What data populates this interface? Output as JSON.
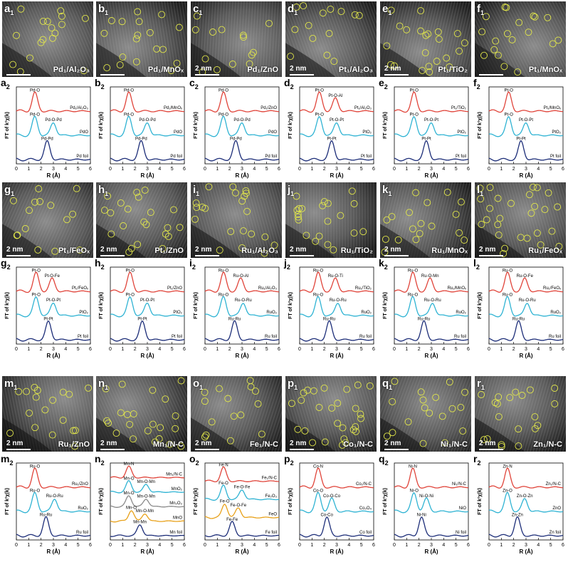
{
  "colors": {
    "red": "#e0443a",
    "cyan": "#2fb3d3",
    "navy": "#1c2d78",
    "orange": "#e8a11a",
    "gray": "#8a8a8a",
    "circle": "#e3e84a"
  },
  "image_panels": [
    {
      "label": "a",
      "sub": "1",
      "caption": "Pd₁/Al₂O₃",
      "scale": ""
    },
    {
      "label": "b",
      "sub": "1",
      "caption": "Pd₁/MnOₓ",
      "scale": ""
    },
    {
      "label": "c",
      "sub": "1",
      "caption": "Pd₁/ZnO",
      "scale": "2 nm"
    },
    {
      "label": "d",
      "sub": "1",
      "caption": "Pt₁/Al₂O₃",
      "scale": "2 nm"
    },
    {
      "label": "e",
      "sub": "1",
      "caption": "Pt₁/TiO₂",
      "scale": "2 nm"
    },
    {
      "label": "f",
      "sub": "1",
      "caption": "Pt₁/MnOₓ",
      "scale": ""
    },
    {
      "label": "g",
      "sub": "1",
      "caption": "Pt₁/FeOₓ",
      "scale": "2 nm"
    },
    {
      "label": "h",
      "sub": "1",
      "caption": "Pt₁/ZnO",
      "scale": "2 nm"
    },
    {
      "label": "i",
      "sub": "1",
      "caption": "Ru₁/Al₂O₃",
      "scale": "2 nm"
    },
    {
      "label": "j",
      "sub": "1",
      "caption": "Ru₁/TiO₂",
      "scale": "2 nm"
    },
    {
      "label": "k",
      "sub": "1",
      "caption": "Ru₁/MnOₓ",
      "scale": "2 nm"
    },
    {
      "label": "l",
      "sub": "1",
      "caption": "Ru₁/FeOₓ",
      "scale": "2 nm"
    },
    {
      "label": "m",
      "sub": "1",
      "caption": "Ru₁/ZnO",
      "scale": "2 nm"
    },
    {
      "label": "n",
      "sub": "1",
      "caption": "Mn₁/N-C",
      "scale": "2 nm"
    },
    {
      "label": "o",
      "sub": "1",
      "caption": "Fe₁/N-C",
      "scale": "2 nm"
    },
    {
      "label": "p",
      "sub": "1",
      "caption": "Co₁/N-C",
      "scale": "2 nm"
    },
    {
      "label": "q",
      "sub": "1",
      "caption": "Ni₁/N-C",
      "scale": "2 nm"
    },
    {
      "label": "r",
      "sub": "1",
      "caption": "Zn₁/N-C",
      "scale": "2 nm"
    }
  ],
  "axes": {
    "xlabel": "R (Å)",
    "ylabel": "FT of k²χ(k)",
    "xticks": [
      "0",
      "1",
      "2",
      "3",
      "4",
      "5",
      "6"
    ]
  },
  "spectra_panels": [
    {
      "label": "a",
      "sub": "2",
      "curves": [
        {
          "color": "red",
          "name": "Pd₁/Al₂O₃",
          "peaks": [
            [
              "Pd-O",
              1.5
            ]
          ]
        },
        {
          "color": "cyan",
          "name": "PdO",
          "peaks": [
            [
              "Pd-O",
              1.5
            ],
            [
              "Pd-O-Pd",
              3.0
            ]
          ]
        },
        {
          "color": "navy",
          "name": "Pd foil",
          "peaks": [
            [
              "Pd-Pd",
              2.5
            ]
          ]
        }
      ]
    },
    {
      "label": "b",
      "sub": "2",
      "curves": [
        {
          "color": "red",
          "name": "Pd₁/MnOₓ",
          "peaks": [
            [
              "Pd-O",
              1.5
            ]
          ]
        },
        {
          "color": "cyan",
          "name": "PdO",
          "peaks": [
            [
              "Pd-O",
              1.5
            ],
            [
              "Pd-O-Pd",
              3.0
            ]
          ]
        },
        {
          "color": "navy",
          "name": "Pd foil",
          "peaks": [
            [
              "Pd-Pd",
              2.5
            ]
          ]
        }
      ]
    },
    {
      "label": "c",
      "sub": "2",
      "curves": [
        {
          "color": "red",
          "name": "Pd₁/ZnO",
          "peaks": [
            [
              "Pd-O",
              1.5
            ]
          ]
        },
        {
          "color": "cyan",
          "name": "PdO",
          "peaks": [
            [
              "Pd-O",
              1.5
            ],
            [
              "Pd-O-Pd",
              3.0
            ]
          ]
        },
        {
          "color": "navy",
          "name": "Pd foil",
          "peaks": [
            [
              "Pd-Pd",
              2.5
            ]
          ]
        }
      ]
    },
    {
      "label": "d",
      "sub": "2",
      "curves": [
        {
          "color": "red",
          "name": "Pt₁/Al₂O₃",
          "peaks": [
            [
              "Pt-O",
              1.6
            ],
            [
              "Pt-O-Al",
              2.9
            ]
          ]
        },
        {
          "color": "cyan",
          "name": "PtO₂",
          "peaks": [
            [
              "Pt-O",
              1.6
            ],
            [
              "Pt-O-Pt",
              3.0
            ]
          ]
        },
        {
          "color": "navy",
          "name": "Pt foil",
          "peaks": [
            [
              "Pt-Pt",
              2.6
            ]
          ]
        }
      ]
    },
    {
      "label": "e",
      "sub": "2",
      "curves": [
        {
          "color": "red",
          "name": "Pt₁/TiO₂",
          "peaks": [
            [
              "Pt-O",
              1.6
            ]
          ]
        },
        {
          "color": "cyan",
          "name": "PtO₂",
          "peaks": [
            [
              "Pt-O",
              1.6
            ],
            [
              "Pt-O-Pt",
              3.0
            ]
          ]
        },
        {
          "color": "navy",
          "name": "Pt foil",
          "peaks": [
            [
              "Pt-Pt",
              2.6
            ]
          ]
        }
      ]
    },
    {
      "label": "f",
      "sub": "2",
      "curves": [
        {
          "color": "red",
          "name": "Pt₁/MnOₓ",
          "peaks": [
            [
              "Pt-O",
              1.6
            ]
          ]
        },
        {
          "color": "cyan",
          "name": "PtO₂",
          "peaks": [
            [
              "Pt-O",
              1.6
            ],
            [
              "Pt-O-Pt",
              3.0
            ]
          ]
        },
        {
          "color": "navy",
          "name": "Pt foil",
          "peaks": [
            [
              "Pt-Pt",
              2.6
            ]
          ]
        }
      ]
    },
    {
      "label": "g",
      "sub": "2",
      "curves": [
        {
          "color": "red",
          "name": "Pt₁/FeOₓ",
          "peaks": [
            [
              "Pt-O",
              1.6
            ],
            [
              "Pt-O-Fe",
              2.9
            ]
          ]
        },
        {
          "color": "cyan",
          "name": "PtO₂",
          "peaks": [
            [
              "Pt-O",
              1.6
            ],
            [
              "Pt-O-Pt",
              3.0
            ]
          ]
        },
        {
          "color": "navy",
          "name": "Pt foil",
          "peaks": [
            [
              "Pt-Pt",
              2.6
            ]
          ]
        }
      ]
    },
    {
      "label": "h",
      "sub": "2",
      "curves": [
        {
          "color": "red",
          "name": "Pt₁/ZnO",
          "peaks": [
            [
              "Pt-O",
              1.6
            ]
          ]
        },
        {
          "color": "cyan",
          "name": "PtO₂",
          "peaks": [
            [
              "Pt-O",
              1.6
            ],
            [
              "Pt-O-Pt",
              3.0
            ]
          ]
        },
        {
          "color": "navy",
          "name": "Pt foil",
          "peaks": [
            [
              "Pt-Pt",
              2.6
            ]
          ]
        }
      ]
    },
    {
      "label": "i",
      "sub": "2",
      "curves": [
        {
          "color": "red",
          "name": "Ru₁/Al₂O₃",
          "peaks": [
            [
              "Ru-O",
              1.5
            ],
            [
              "Ru-O-Al",
              2.9
            ]
          ]
        },
        {
          "color": "cyan",
          "name": "RuO₂",
          "peaks": [
            [
              "Ru-O",
              1.5
            ],
            [
              "Ru-O-Ru",
              3.1
            ]
          ]
        },
        {
          "color": "navy",
          "name": "Ru foil",
          "peaks": [
            [
              "Ru-Ru",
              2.4
            ]
          ]
        }
      ]
    },
    {
      "label": "j",
      "sub": "2",
      "curves": [
        {
          "color": "red",
          "name": "Ru₁/TiO₂",
          "peaks": [
            [
              "Ru-O",
              1.5
            ],
            [
              "Ru-O-Ti",
              2.9
            ]
          ]
        },
        {
          "color": "cyan",
          "name": "RuO₂",
          "peaks": [
            [
              "Ru-O",
              1.5
            ],
            [
              "Ru-O-Ru",
              3.1
            ]
          ]
        },
        {
          "color": "navy",
          "name": "Ru foil",
          "peaks": [
            [
              "Ru-Ru",
              2.4
            ]
          ]
        }
      ]
    },
    {
      "label": "k",
      "sub": "2",
      "curves": [
        {
          "color": "red",
          "name": "Ru₁/MnOₓ",
          "peaks": [
            [
              "Ru-O",
              1.5
            ],
            [
              "Ru-O-Mn",
              2.9
            ]
          ]
        },
        {
          "color": "cyan",
          "name": "RuO₂",
          "peaks": [
            [
              "Ru-O",
              1.5
            ],
            [
              "Ru-O-Ru",
              3.1
            ]
          ]
        },
        {
          "color": "navy",
          "name": "Ru foil",
          "peaks": [
            [
              "Ru-Ru",
              2.4
            ]
          ]
        }
      ]
    },
    {
      "label": "l",
      "sub": "2",
      "curves": [
        {
          "color": "red",
          "name": "Ru₁/FeOₓ",
          "peaks": [
            [
              "Ru-O",
              1.5
            ],
            [
              "Ru-O-Fe",
              2.9
            ]
          ]
        },
        {
          "color": "cyan",
          "name": "RuO₂",
          "peaks": [
            [
              "Ru-O",
              1.5
            ],
            [
              "Ru-O-Ru",
              3.1
            ]
          ]
        },
        {
          "color": "navy",
          "name": "Ru foil",
          "peaks": [
            [
              "Ru-Ru",
              2.4
            ]
          ]
        }
      ]
    },
    {
      "label": "m",
      "sub": "2",
      "curves": [
        {
          "color": "red",
          "name": "Ru₁/ZnO",
          "peaks": [
            [
              "Ru-O",
              1.5
            ]
          ]
        },
        {
          "color": "cyan",
          "name": "RuO₂",
          "peaks": [
            [
              "Ru-O",
              1.5
            ],
            [
              "Ru-O-Ru",
              3.1
            ]
          ]
        },
        {
          "color": "navy",
          "name": "Ru foil",
          "peaks": [
            [
              "Ru-Ru",
              2.4
            ]
          ]
        }
      ]
    },
    {
      "label": "n",
      "sub": "2",
      "curves": [
        {
          "color": "red",
          "name": "Mn₁/N-C",
          "peaks": [
            [
              "Mn-N",
              1.5
            ]
          ]
        },
        {
          "color": "cyan",
          "name": "MnO₂",
          "peaks": [
            [
              "Mn-O",
              1.5
            ],
            [
              "Mn-O-Mn",
              2.9
            ]
          ]
        },
        {
          "color": "gray",
          "name": "Mn₂O₃",
          "peaks": [
            [
              "Mn-O",
              1.5
            ],
            [
              "Mn-O-Mn",
              2.9
            ]
          ]
        },
        {
          "color": "orange",
          "name": "MnO",
          "peaks": [
            [
              "Mn-O",
              1.7
            ],
            [
              "Mn-O-Mn",
              2.8
            ]
          ]
        },
        {
          "color": "navy",
          "name": "Mn foil",
          "peaks": [
            [
              "Mn-Mn",
              2.4
            ]
          ]
        }
      ]
    },
    {
      "label": "o",
      "sub": "2",
      "curves": [
        {
          "color": "red",
          "name": "Fe₁/N-C",
          "peaks": [
            [
              "Fe-N",
              1.5
            ]
          ]
        },
        {
          "color": "cyan",
          "name": "Fe₂O₃",
          "peaks": [
            [
              "Fe-O",
              1.5
            ],
            [
              "Fe-O-Fe",
              3.0
            ]
          ]
        },
        {
          "color": "orange",
          "name": "FeO",
          "peaks": [
            [
              "Fe-O",
              1.6
            ],
            [
              "Fe-O-Fe",
              2.7
            ]
          ]
        },
        {
          "color": "navy",
          "name": "Fe foil",
          "peaks": [
            [
              "Fe-Fe",
              2.2
            ]
          ]
        }
      ]
    },
    {
      "label": "p",
      "sub": "2",
      "curves": [
        {
          "color": "red",
          "name": "Co₁/N-C",
          "peaks": [
            [
              "Co-N",
              1.5
            ]
          ]
        },
        {
          "color": "cyan",
          "name": "Co₃O₄",
          "peaks": [
            [
              "Co-O",
              1.5
            ],
            [
              "Co-O-Co",
              2.6
            ]
          ]
        },
        {
          "color": "navy",
          "name": "Co foil",
          "peaks": [
            [
              "Co-Co",
              2.2
            ]
          ]
        }
      ]
    },
    {
      "label": "q",
      "sub": "2",
      "curves": [
        {
          "color": "red",
          "name": "Ni₁/N-C",
          "peaks": [
            [
              "Ni-N",
              1.5
            ]
          ]
        },
        {
          "color": "cyan",
          "name": "NiO",
          "peaks": [
            [
              "Ni-O",
              1.6
            ],
            [
              "Ni-O-Ni",
              2.6
            ]
          ]
        },
        {
          "color": "navy",
          "name": "Ni foil",
          "peaks": [
            [
              "Ni-Ni",
              2.2
            ]
          ]
        }
      ]
    },
    {
      "label": "r",
      "sub": "2",
      "curves": [
        {
          "color": "red",
          "name": "Zn₁/N-C",
          "peaks": [
            [
              "Zn-N",
              1.5
            ]
          ]
        },
        {
          "color": "cyan",
          "name": "ZnO",
          "peaks": [
            [
              "Zn-O",
              1.5
            ],
            [
              "Zn-O-Zn",
              2.9
            ]
          ]
        },
        {
          "color": "navy",
          "name": "Zn foil",
          "peaks": [
            [
              "Zn-Zn",
              2.3
            ]
          ]
        }
      ]
    }
  ]
}
